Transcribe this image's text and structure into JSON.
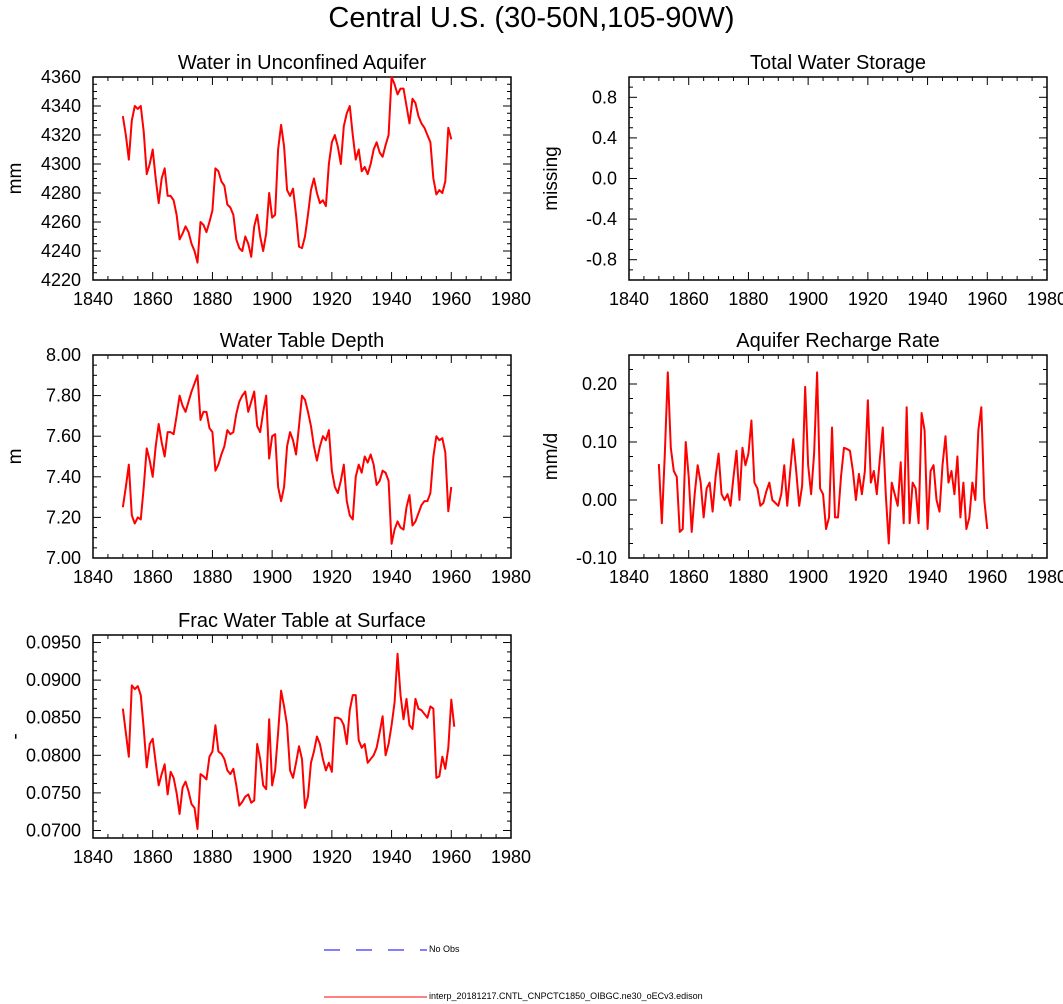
{
  "page_title": "Central U.S. (30-50N,105-90W)",
  "legend": [
    {
      "label": "No Obs",
      "style": "dashed",
      "color": "#0000ff"
    },
    {
      "label": "interp_20181217.CNTL_CNPCTC1850_OIBGC.ne30_oECv3.edison",
      "style": "solid",
      "color": "#ff0000"
    }
  ],
  "colors": {
    "series": "#ff0000",
    "obs": "#0000ff",
    "axis": "#000000"
  },
  "x_years_start": 1850,
  "chart_data": [
    {
      "type": "line",
      "title": "Water in Unconfined Aquifer",
      "ylabel": "mm",
      "xlim": [
        1840,
        1980
      ],
      "ylim": [
        4220,
        4360
      ],
      "xticks": [
        "1840",
        "1860",
        "1880",
        "1900",
        "1920",
        "1940",
        "1960",
        "1980"
      ],
      "yticks": [
        "4220",
        "4240",
        "4260",
        "4280",
        "4300",
        "4320",
        "4340",
        "4360"
      ],
      "series": [
        {
          "name": "interp_20181217.CNTL_CNPCTC1850_OIBGC.ne30_oECv3.edison",
          "values": [
            4333,
            4320,
            4303,
            4330,
            4340,
            4338,
            4340,
            4322,
            4293,
            4300,
            4310,
            4290,
            4273,
            4290,
            4297,
            4278,
            4278,
            4275,
            4265,
            4248,
            4252,
            4257,
            4253,
            4245,
            4240,
            4232,
            4260,
            4258,
            4253,
            4260,
            4268,
            4297,
            4295,
            4288,
            4285,
            4272,
            4270,
            4265,
            4248,
            4242,
            4240,
            4250,
            4245,
            4236,
            4257,
            4265,
            4250,
            4240,
            4252,
            4280,
            4263,
            4265,
            4310,
            4327,
            4312,
            4282,
            4278,
            4283,
            4265,
            4243,
            4242,
            4250,
            4265,
            4282,
            4290,
            4280,
            4273,
            4275,
            4271,
            4300,
            4315,
            4320,
            4312,
            4300,
            4326,
            4335,
            4340,
            4320,
            4303,
            4310,
            4295,
            4298,
            4293,
            4300,
            4310,
            4315,
            4308,
            4305,
            4313,
            4320,
            4360,
            4355,
            4348,
            4352,
            4352,
            4340,
            4328,
            4345,
            4342,
            4333,
            4328,
            4325,
            4320,
            4315,
            4290,
            4279,
            4282,
            4280,
            4288,
            4325,
            4317
          ]
        }
      ]
    },
    {
      "type": "line",
      "title": "Total Water Storage",
      "ylabel": "missing",
      "xlim": [
        1840,
        1980
      ],
      "ylim": [
        -1.0,
        1.0
      ],
      "xticks": [
        "1840",
        "1860",
        "1880",
        "1900",
        "1920",
        "1940",
        "1960",
        "1980"
      ],
      "yticks": [
        "-0.8",
        "-0.4",
        "0.0",
        "0.4",
        "0.8"
      ],
      "series": []
    },
    {
      "type": "line",
      "title": "Water Table Depth",
      "ylabel": "m",
      "xlim": [
        1840,
        1980
      ],
      "ylim": [
        7.0,
        8.0
      ],
      "xticks": [
        "1840",
        "1860",
        "1880",
        "1900",
        "1920",
        "1940",
        "1960",
        "1980"
      ],
      "yticks": [
        "7.00",
        "7.20",
        "7.40",
        "7.60",
        "7.80",
        "8.00"
      ],
      "series": [
        {
          "name": "interp_20181217.CNTL_CNPCTC1850_OIBGC.ne30_oECv3.edison",
          "values": [
            7.25,
            7.35,
            7.46,
            7.21,
            7.17,
            7.2,
            7.19,
            7.35,
            7.54,
            7.48,
            7.4,
            7.55,
            7.66,
            7.57,
            7.5,
            7.62,
            7.62,
            7.61,
            7.7,
            7.8,
            7.75,
            7.72,
            7.77,
            7.82,
            7.86,
            7.9,
            7.68,
            7.72,
            7.72,
            7.64,
            7.62,
            7.43,
            7.46,
            7.51,
            7.55,
            7.63,
            7.61,
            7.62,
            7.71,
            7.77,
            7.8,
            7.82,
            7.72,
            7.77,
            7.82,
            7.65,
            7.62,
            7.72,
            7.8,
            7.49,
            7.6,
            7.61,
            7.35,
            7.28,
            7.35,
            7.55,
            7.62,
            7.58,
            7.51,
            7.65,
            7.8,
            7.78,
            7.72,
            7.65,
            7.55,
            7.48,
            7.55,
            7.6,
            7.58,
            7.63,
            7.43,
            7.35,
            7.32,
            7.38,
            7.46,
            7.28,
            7.21,
            7.19,
            7.4,
            7.46,
            7.42,
            7.5,
            7.47,
            7.51,
            7.46,
            7.36,
            7.38,
            7.43,
            7.42,
            7.38,
            7.07,
            7.14,
            7.18,
            7.15,
            7.14,
            7.25,
            7.31,
            7.16,
            7.18,
            7.22,
            7.26,
            7.28,
            7.28,
            7.32,
            7.5,
            7.6,
            7.58,
            7.59,
            7.52,
            7.23,
            7.35
          ]
        }
      ]
    },
    {
      "type": "line",
      "title": "Aquifer Recharge Rate",
      "ylabel": "mm/d",
      "xlim": [
        1840,
        1980
      ],
      "ylim": [
        -0.1,
        0.25
      ],
      "xticks": [
        "1840",
        "1860",
        "1880",
        "1900",
        "1920",
        "1940",
        "1960",
        "1980"
      ],
      "yticks": [
        "-0.10",
        "0.00",
        "0.10",
        "0.20"
      ],
      "series": [
        {
          "name": "interp_20181217.CNTL_CNPCTC1850_OIBGC.ne30_oECv3.edison",
          "values": [
            0.062,
            -0.04,
            0.08,
            0.22,
            0.09,
            0.05,
            0.04,
            -0.055,
            -0.05,
            0.1,
            0.04,
            -0.055,
            0.01,
            0.06,
            0.03,
            -0.03,
            0.02,
            0.03,
            -0.02,
            0.04,
            0.08,
            0.01,
            0.0,
            0.01,
            -0.01,
            0.04,
            0.085,
            0.0,
            0.09,
            0.06,
            0.08,
            0.137,
            0.03,
            0.02,
            -0.01,
            -0.005,
            0.015,
            0.03,
            0.0,
            -0.005,
            -0.01,
            0.01,
            0.06,
            -0.01,
            0.05,
            0.105,
            0.05,
            -0.01,
            0.025,
            0.195,
            0.06,
            0.01,
            0.08,
            0.22,
            0.02,
            0.01,
            -0.05,
            -0.03,
            0.125,
            -0.03,
            -0.03,
            0.04,
            0.09,
            0.088,
            0.085,
            0.05,
            0.0,
            0.045,
            0.01,
            0.05,
            0.172,
            0.03,
            0.05,
            0.01,
            0.07,
            0.125,
            0.01,
            -0.075,
            0.03,
            0.01,
            -0.01,
            0.065,
            -0.04,
            0.16,
            -0.04,
            0.03,
            0.02,
            -0.04,
            0.15,
            0.12,
            -0.05,
            0.05,
            0.06,
            0.0,
            -0.02,
            0.06,
            0.11,
            0.03,
            0.05,
            0.01,
            0.075,
            -0.03,
            0.03,
            -0.05,
            -0.03,
            0.03,
            0.0,
            0.12,
            0.16,
            0.0,
            -0.05
          ]
        }
      ]
    },
    {
      "type": "line",
      "title": "Frac Water Table at Surface",
      "ylabel": "-",
      "xlim": [
        1840,
        1980
      ],
      "ylim": [
        0.069,
        0.096
      ],
      "xticks": [
        "1840",
        "1860",
        "1880",
        "1900",
        "1920",
        "1940",
        "1960",
        "1980"
      ],
      "yticks": [
        "0.0700",
        "0.0750",
        "0.0800",
        "0.0850",
        "0.0900",
        "0.0950"
      ],
      "series": [
        {
          "name": "interp_20181217.CNTL_CNPCTC1850_OIBGC.ne30_oECv3.edison",
          "values": [
            0.0862,
            0.083,
            0.0798,
            0.0893,
            0.0888,
            0.0892,
            0.088,
            0.0835,
            0.0784,
            0.0815,
            0.0822,
            0.079,
            0.076,
            0.0775,
            0.0788,
            0.0748,
            0.0778,
            0.077,
            0.075,
            0.0722,
            0.0757,
            0.0765,
            0.0752,
            0.0735,
            0.073,
            0.0702,
            0.0775,
            0.0772,
            0.0768,
            0.0798,
            0.0805,
            0.084,
            0.0805,
            0.0802,
            0.0795,
            0.078,
            0.0775,
            0.0782,
            0.076,
            0.0733,
            0.0738,
            0.0745,
            0.0748,
            0.0737,
            0.074,
            0.0815,
            0.0795,
            0.076,
            0.0755,
            0.0848,
            0.076,
            0.078,
            0.083,
            0.0886,
            0.0865,
            0.084,
            0.078,
            0.077,
            0.079,
            0.0812,
            0.0795,
            0.073,
            0.0745,
            0.079,
            0.0805,
            0.0825,
            0.0815,
            0.0795,
            0.078,
            0.079,
            0.0778,
            0.085,
            0.085,
            0.0848,
            0.084,
            0.0815,
            0.086,
            0.088,
            0.088,
            0.082,
            0.081,
            0.0815,
            0.079,
            0.0795,
            0.08,
            0.081,
            0.083,
            0.0852,
            0.08,
            0.0815,
            0.084,
            0.087,
            0.0935,
            0.088,
            0.0848,
            0.0875,
            0.084,
            0.0835,
            0.0875,
            0.0862,
            0.086,
            0.0855,
            0.085,
            0.0865,
            0.0862,
            0.077,
            0.0772,
            0.0798,
            0.0782,
            0.081,
            0.0874,
            0.0838
          ]
        }
      ]
    }
  ]
}
